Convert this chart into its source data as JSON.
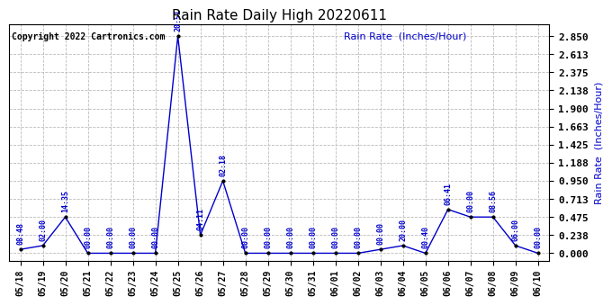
{
  "title": "Rain Rate Daily High 20220611",
  "ylabel": "Rain Rate  (Inches/Hour)",
  "copyright": "Copyright 2022 Cartronics.com",
  "line_color": "#0000cc",
  "background_color": "#ffffff",
  "grid_color": "#bbbbbb",
  "text_color_blue": "#0000cc",
  "text_color_black": "#000000",
  "ylim": [
    -0.1,
    3.0
  ],
  "yticks": [
    0.0,
    0.238,
    0.475,
    0.713,
    0.95,
    1.188,
    1.425,
    1.663,
    1.9,
    2.138,
    2.375,
    2.613,
    2.85
  ],
  "x_labels": [
    "05/18",
    "05/19",
    "05/20",
    "05/21",
    "05/22",
    "05/23",
    "05/24",
    "05/25",
    "05/26",
    "05/27",
    "05/28",
    "05/29",
    "05/30",
    "05/31",
    "06/01",
    "06/02",
    "06/03",
    "06/04",
    "06/05",
    "06/06",
    "06/07",
    "06/08",
    "06/09",
    "06/10"
  ],
  "data_points": [
    {
      "day": 0,
      "value": 0.05,
      "time": "08:48"
    },
    {
      "day": 1,
      "value": 0.1,
      "time": "02:00"
    },
    {
      "day": 2,
      "value": 0.475,
      "time": "14:35"
    },
    {
      "day": 3,
      "value": 0.0,
      "time": "00:00"
    },
    {
      "day": 4,
      "value": 0.0,
      "time": "00:00"
    },
    {
      "day": 5,
      "value": 0.0,
      "time": "00:00"
    },
    {
      "day": 6,
      "value": 0.0,
      "time": "00:00"
    },
    {
      "day": 7,
      "value": 2.85,
      "time": "20:51"
    },
    {
      "day": 8,
      "value": 0.238,
      "time": "04:11"
    },
    {
      "day": 9,
      "value": 0.95,
      "time": "02:18"
    },
    {
      "day": 10,
      "value": 0.0,
      "time": "00:00"
    },
    {
      "day": 11,
      "value": 0.0,
      "time": "00:00"
    },
    {
      "day": 12,
      "value": 0.0,
      "time": "00:00"
    },
    {
      "day": 13,
      "value": 0.0,
      "time": "00:00"
    },
    {
      "day": 14,
      "value": 0.0,
      "time": "00:00"
    },
    {
      "day": 15,
      "value": 0.0,
      "time": "00:00"
    },
    {
      "day": 16,
      "value": 0.05,
      "time": "00:00"
    },
    {
      "day": 17,
      "value": 0.1,
      "time": "20:00"
    },
    {
      "day": 18,
      "value": 0.0,
      "time": "00:40"
    },
    {
      "day": 19,
      "value": 0.575,
      "time": "06:41"
    },
    {
      "day": 20,
      "value": 0.475,
      "time": "00:00"
    },
    {
      "day": 21,
      "value": 0.475,
      "time": "08:56"
    },
    {
      "day": 22,
      "value": 0.1,
      "time": "06:00"
    },
    {
      "day": 23,
      "value": 0.0,
      "time": "00:00"
    }
  ]
}
